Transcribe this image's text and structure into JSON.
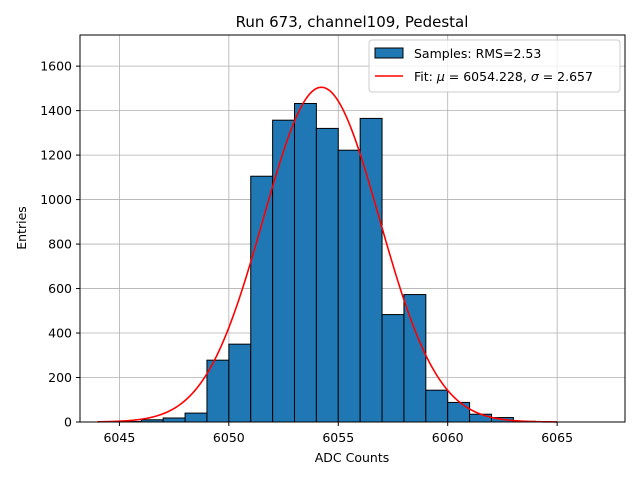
{
  "chart_data": {
    "type": "bar",
    "title": "Run 673, channel109, Pedestal",
    "xlabel": "ADC Counts",
    "ylabel": "Entries",
    "xlim": [
      6043.2,
      6068.1
    ],
    "ylim": [
      0,
      1740
    ],
    "xticks": [
      6045,
      6050,
      6055,
      6060,
      6065
    ],
    "yticks": [
      0,
      200,
      400,
      600,
      800,
      1000,
      1200,
      1400,
      1600
    ],
    "grid": true,
    "legend_position": "top-right",
    "colors": {
      "bars": "#1f77b4",
      "bar_edge": "#000000",
      "fit": "#ff0000"
    },
    "histogram": {
      "name": "Samples: RMS=2.53",
      "bin_width": 1,
      "bins": [
        {
          "x0": 6045,
          "x1": 6046,
          "count": 2
        },
        {
          "x0": 6046,
          "x1": 6047,
          "count": 10
        },
        {
          "x0": 6047,
          "x1": 6048,
          "count": 18
        },
        {
          "x0": 6048,
          "x1": 6049,
          "count": 40
        },
        {
          "x0": 6049,
          "x1": 6050,
          "count": 278
        },
        {
          "x0": 6050,
          "x1": 6051,
          "count": 350
        },
        {
          "x0": 6051,
          "x1": 6052,
          "count": 1105
        },
        {
          "x0": 6052,
          "x1": 6053,
          "count": 1357
        },
        {
          "x0": 6053,
          "x1": 6054,
          "count": 1432
        },
        {
          "x0": 6054,
          "x1": 6055,
          "count": 1320
        },
        {
          "x0": 6055,
          "x1": 6056,
          "count": 1222
        },
        {
          "x0": 6056,
          "x1": 6057,
          "count": 1365
        },
        {
          "x0": 6057,
          "x1": 6058,
          "count": 483
        },
        {
          "x0": 6058,
          "x1": 6059,
          "count": 573
        },
        {
          "x0": 6059,
          "x1": 6060,
          "count": 143
        },
        {
          "x0": 6060,
          "x1": 6061,
          "count": 88
        },
        {
          "x0": 6061,
          "x1": 6062,
          "count": 35
        },
        {
          "x0": 6062,
          "x1": 6063,
          "count": 20
        },
        {
          "x0": 6063,
          "x1": 6064,
          "count": 3
        }
      ]
    },
    "fit": {
      "name_prefix": "Fit: ",
      "mu_symbol": "μ",
      "mu_text": " = 6054.228, ",
      "sigma_symbol": "σ",
      "sigma_text": " = 2.657",
      "mu": 6054.228,
      "sigma": 2.657,
      "amplitude": 1505,
      "x_range": [
        6044,
        6065
      ]
    }
  }
}
